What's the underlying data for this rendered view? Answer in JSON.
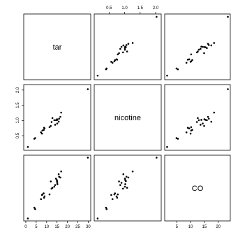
{
  "chart_data": {
    "type": "scatter",
    "variables": [
      "tar",
      "nicotine",
      "CO"
    ],
    "ticks": {
      "tar": [
        0,
        5,
        10,
        15,
        20,
        25,
        30
      ],
      "nicotine": [
        0.5,
        1.0,
        1.5,
        2.0
      ],
      "CO": [
        5,
        10,
        15,
        20
      ]
    },
    "tick_labels": {
      "tar": [
        "0",
        "5",
        "10",
        "15",
        "20",
        "25",
        "30"
      ],
      "nicotine": [
        "0.5",
        "1.0",
        "1.5",
        "2.0"
      ],
      "CO": [
        "5",
        "10",
        "15",
        "20"
      ]
    },
    "ranges": {
      "tar": [
        0.2,
        30.0
      ],
      "nicotine": [
        0.1,
        2.1
      ],
      "CO": [
        1.5,
        23.5
      ]
    },
    "observations": [
      {
        "tar": 14.1,
        "nicotine": 0.86,
        "CO": 13.6
      },
      {
        "tar": 16.0,
        "nicotine": 1.06,
        "CO": 16.6
      },
      {
        "tar": 29.8,
        "nicotine": 2.03,
        "CO": 23.5
      },
      {
        "tar": 8.0,
        "nicotine": 0.67,
        "CO": 10.2
      },
      {
        "tar": 4.1,
        "nicotine": 0.4,
        "CO": 5.4
      },
      {
        "tar": 15.0,
        "nicotine": 1.04,
        "CO": 15.0
      },
      {
        "tar": 8.8,
        "nicotine": 0.76,
        "CO": 9.0
      },
      {
        "tar": 12.4,
        "nicotine": 0.95,
        "CO": 12.3
      },
      {
        "tar": 16.6,
        "nicotine": 1.12,
        "CO": 16.3
      },
      {
        "tar": 14.9,
        "nicotine": 1.02,
        "CO": 15.4
      },
      {
        "tar": 13.7,
        "nicotine": 1.01,
        "CO": 13.0
      },
      {
        "tar": 15.1,
        "nicotine": 0.9,
        "CO": 14.4
      },
      {
        "tar": 7.8,
        "nicotine": 0.57,
        "CO": 10.0
      },
      {
        "tar": 11.4,
        "nicotine": 0.78,
        "CO": 10.2
      },
      {
        "tar": 9.0,
        "nicotine": 0.74,
        "CO": 9.5
      },
      {
        "tar": 1.0,
        "nicotine": 0.13,
        "CO": 1.5
      },
      {
        "tar": 17.0,
        "nicotine": 1.26,
        "CO": 18.5
      },
      {
        "tar": 12.8,
        "nicotine": 1.08,
        "CO": 12.6
      },
      {
        "tar": 15.8,
        "nicotine": 0.96,
        "CO": 17.5
      },
      {
        "tar": 4.5,
        "nicotine": 0.42,
        "CO": 4.9
      },
      {
        "tar": 14.5,
        "nicotine": 1.01,
        "CO": 15.9
      },
      {
        "tar": 7.3,
        "nicotine": 0.61,
        "CO": 8.5
      },
      {
        "tar": 8.6,
        "nicotine": 0.69,
        "CO": 10.6
      },
      {
        "tar": 15.2,
        "nicotine": 1.02,
        "CO": 13.9
      },
      {
        "tar": 12.0,
        "nicotine": 0.82,
        "CO": 14.9
      }
    ]
  }
}
